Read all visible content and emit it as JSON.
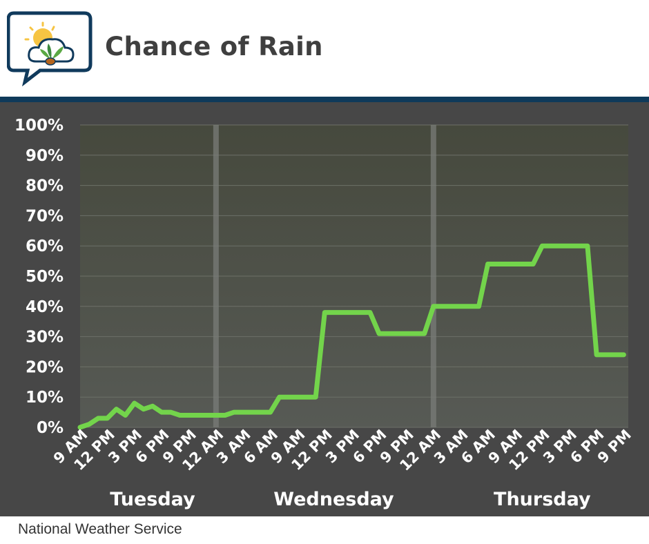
{
  "header": {
    "title": "Chance of Rain",
    "logo_icon": "weather-chat-bubble-icon"
  },
  "footer": {
    "source": "National Weather Service"
  },
  "colors": {
    "line": "#73d44b",
    "rule": "#0f3a5a",
    "background": "#474747",
    "title": "#3f3f3f"
  },
  "chart_data": {
    "type": "line",
    "title": "Chance of Rain",
    "xlabel": "",
    "ylabel": "",
    "ylim": [
      0,
      100
    ],
    "grid": true,
    "yticks": [
      0,
      10,
      20,
      30,
      40,
      50,
      60,
      70,
      80,
      90,
      100
    ],
    "ytick_labels": [
      "0%",
      "10%",
      "20%",
      "30%",
      "40%",
      "50%",
      "60%",
      "70%",
      "80%",
      "90%",
      "100%"
    ],
    "xlim_hours_from_tuesday_midnight": [
      9,
      69.5
    ],
    "xticks": [
      {
        "label": "9 AM",
        "hour": 9
      },
      {
        "label": "12 PM",
        "hour": 12
      },
      {
        "label": "3 PM",
        "hour": 15
      },
      {
        "label": "6 PM",
        "hour": 18
      },
      {
        "label": "9 PM",
        "hour": 21
      },
      {
        "label": "12 AM",
        "hour": 24
      },
      {
        "label": "3 AM",
        "hour": 27
      },
      {
        "label": "6 AM",
        "hour": 30
      },
      {
        "label": "9 AM",
        "hour": 33
      },
      {
        "label": "12 PM",
        "hour": 36
      },
      {
        "label": "3 PM",
        "hour": 39
      },
      {
        "label": "6 PM",
        "hour": 42
      },
      {
        "label": "9 PM",
        "hour": 45
      },
      {
        "label": "12 AM",
        "hour": 48
      },
      {
        "label": "3 AM",
        "hour": 51
      },
      {
        "label": "6 AM",
        "hour": 54
      },
      {
        "label": "9 AM",
        "hour": 57
      },
      {
        "label": "12 PM",
        "hour": 60
      },
      {
        "label": "3 PM",
        "hour": 63
      },
      {
        "label": "6 PM",
        "hour": 66
      },
      {
        "label": "9 PM",
        "hour": 69
      }
    ],
    "day_dividers_hour": [
      24,
      48
    ],
    "day_labels": [
      {
        "label": "Tuesday",
        "center_hour": 17
      },
      {
        "label": "Wednesday",
        "center_hour": 37
      },
      {
        "label": "Thursday",
        "center_hour": 60
      }
    ],
    "series": [
      {
        "x": [
          9,
          10,
          11,
          12,
          13,
          14,
          15,
          16,
          17,
          18,
          19,
          20,
          21,
          22,
          23,
          24,
          25,
          26,
          27,
          28,
          29,
          30,
          31,
          32,
          33,
          34,
          35,
          36,
          37,
          38,
          39,
          40,
          41,
          42,
          43,
          44,
          45,
          46,
          47,
          48,
          49,
          50,
          51,
          52,
          53,
          54,
          55,
          56,
          57,
          58,
          59,
          60,
          61,
          62,
          63,
          64,
          65,
          66,
          67,
          68,
          69
        ],
        "values": [
          0,
          1,
          3,
          3,
          6,
          4,
          8,
          6,
          7,
          5,
          5,
          4,
          4,
          4,
          4,
          4,
          4,
          5,
          5,
          5,
          5,
          5,
          10,
          10,
          10,
          10,
          10,
          38,
          38,
          38,
          38,
          38,
          38,
          31,
          31,
          31,
          31,
          31,
          31,
          40,
          40,
          40,
          40,
          40,
          40,
          54,
          54,
          54,
          54,
          54,
          54,
          60,
          60,
          60,
          60,
          60,
          60,
          24,
          24,
          24,
          24
        ]
      }
    ]
  }
}
